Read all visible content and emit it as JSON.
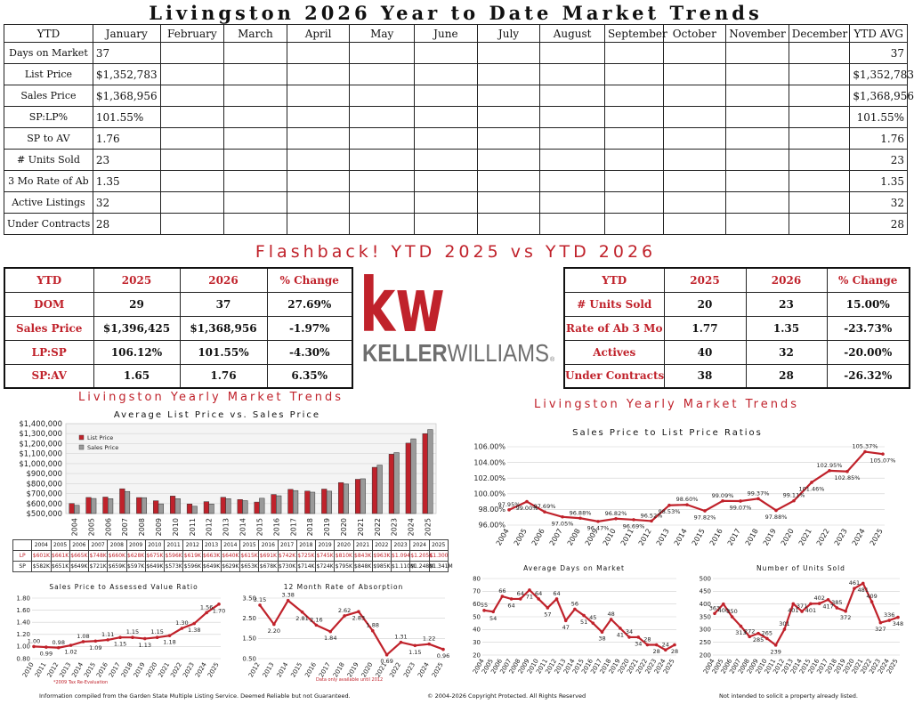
{
  "title": "Livingston 2026 Year to Date Market Trends",
  "main_table": {
    "headers": [
      "YTD",
      "January",
      "February",
      "March",
      "April",
      "May",
      "June",
      "July",
      "August",
      "September",
      "October",
      "November",
      "December",
      "YTD AVG"
    ],
    "rows": [
      {
        "label": "Days on Market",
        "jan": "37",
        "avg": "37"
      },
      {
        "label": "List Price",
        "jan": "$1,352,783",
        "avg": "$1,352,783"
      },
      {
        "label": "Sales Price",
        "jan": "$1,368,956",
        "avg": "$1,368,956"
      },
      {
        "label": "SP:LP%",
        "jan": "101.55%",
        "avg": "101.55%"
      },
      {
        "label": "SP to AV",
        "jan": "1.76",
        "avg": "1.76"
      },
      {
        "label": "# Units Sold",
        "jan": "23",
        "avg": "23"
      },
      {
        "label": "3 Mo Rate of Ab",
        "jan": "1.35",
        "avg": "1.35"
      },
      {
        "label": "Active Listings",
        "jan": "32",
        "avg": "32"
      },
      {
        "label": "Under Contracts",
        "jan": "28",
        "avg": "28"
      }
    ]
  },
  "flashback_title": "Flashback!  YTD 2025 vs YTD 2026",
  "compare_left": {
    "headers": [
      "YTD",
      "2025",
      "2026",
      "% Change"
    ],
    "rows": [
      [
        "DOM",
        "29",
        "37",
        "27.69%"
      ],
      [
        "Sales Price",
        "$1,396,425",
        "$1,368,956",
        "-1.97%"
      ],
      [
        "LP:SP",
        "106.12%",
        "101.55%",
        "-4.30%"
      ],
      [
        "SP:AV",
        "1.65",
        "1.76",
        "6.35%"
      ]
    ]
  },
  "compare_right": {
    "headers": [
      "YTD",
      "2025",
      "2026",
      "% Change"
    ],
    "rows": [
      [
        "# Units Sold",
        "20",
        "23",
        "15.00%"
      ],
      [
        "Rate of Ab 3 Mo",
        "1.77",
        "1.35",
        "-23.73%"
      ],
      [
        "Actives",
        "40",
        "32",
        "-20.00%"
      ],
      [
        "Under Contracts",
        "38",
        "28",
        "-26.32%"
      ]
    ]
  },
  "logo": {
    "mark": "kw",
    "name_bold": "KELLER",
    "name_light": "WILLIAMS",
    "reg": "®"
  },
  "section_title": "Livingston Yearly Market Trends",
  "colors": {
    "red": "#c0222b",
    "dark": "#222222",
    "gray": "#9a9a9a"
  },
  "price_table": {
    "years": [
      "2004",
      "2005",
      "2006",
      "2007",
      "2008",
      "2009",
      "2010",
      "2011",
      "2012",
      "2013",
      "2014",
      "2015",
      "2016",
      "2017",
      "2018",
      "2019",
      "2020",
      "2021",
      "2022",
      "2023",
      "2024",
      "2025"
    ],
    "lp_label": "LP",
    "lp": [
      "$601K",
      "$661K",
      "$665K",
      "$748K",
      "$660K",
      "$628K",
      "$675K",
      "$596K",
      "$619K",
      "$663K",
      "$640K",
      "$615K",
      "$691K",
      "$742K",
      "$725K",
      "$745K",
      "$810K",
      "$843K",
      "$963K",
      "$1.094",
      "$1.205K",
      "$1.300"
    ],
    "sp_label": "SP",
    "sp": [
      "$582K",
      "$651K",
      "$649K",
      "$721K",
      "$659K",
      "$597K",
      "$649K",
      "$573K",
      "$596K",
      "$649K",
      "$629K",
      "$653K",
      "$678K",
      "$730K",
      "$714K",
      "$724K",
      "$795K",
      "$848K",
      "$985K",
      "$1.110M",
      "$1.248M",
      "$1.341M"
    ]
  },
  "chart_data": [
    {
      "id": "avg-list-vs-sales",
      "type": "bar",
      "title": "Average List Price vs. Sales Price",
      "categories": [
        "2004",
        "2005",
        "2006",
        "2007",
        "2008",
        "2009",
        "2010",
        "2011",
        "2012",
        "2013",
        "2014",
        "2015",
        "2016",
        "2017",
        "2018",
        "2019",
        "2020",
        "2021",
        "2022",
        "2023",
        "2024",
        "2025"
      ],
      "series": [
        {
          "name": "List Price",
          "values": [
            601000,
            661000,
            665000,
            748000,
            660000,
            628000,
            675000,
            596000,
            619000,
            663000,
            640000,
            615000,
            691000,
            742000,
            725000,
            745000,
            810000,
            843000,
            963000,
            1094000,
            1205000,
            1300000
          ]
        },
        {
          "name": "Sales Price",
          "values": [
            582000,
            651000,
            649000,
            721000,
            659000,
            597000,
            649000,
            573000,
            596000,
            649000,
            629000,
            653000,
            678000,
            730000,
            714000,
            724000,
            795000,
            848000,
            985000,
            1110000,
            1248000,
            1341000
          ]
        }
      ],
      "ylim": [
        500000,
        1400000
      ],
      "yticks": [
        "$500,000",
        "$600,000",
        "$700,000",
        "$800,000",
        "$900,000",
        "$1,000,000",
        "$1,100,000",
        "$1,200,000",
        "$1,300,000",
        "$1,400,000"
      ],
      "legend": "top-left"
    },
    {
      "id": "sp-lp-ratio",
      "type": "line",
      "title": "Sales Price to List Price Ratios",
      "x": [
        "2004",
        "2005",
        "2006",
        "2007",
        "2008",
        "2009",
        "2010",
        "2011",
        "2012",
        "2013",
        "2014",
        "2015",
        "2016",
        "2017",
        "2018",
        "2019",
        "2020",
        "2021",
        "2022",
        "2023",
        "2024",
        "2025"
      ],
      "values": [
        97.95,
        99.0,
        97.69,
        97.05,
        96.88,
        96.47,
        96.82,
        96.69,
        96.52,
        98.53,
        98.6,
        97.82,
        99.09,
        99.07,
        99.37,
        97.88,
        99.11,
        101.46,
        102.95,
        102.85,
        105.37,
        105.07
      ],
      "labels": [
        "97.95%",
        "99.00%",
        "97.69%",
        "97.05%",
        "96.88%",
        "96.47%",
        "96.82%",
        "96.69%",
        "96.52%",
        "98.53%",
        "98.60%",
        "97.82%",
        "99.09%",
        "99.07%",
        "99.37%",
        "97.88%",
        "99.11%",
        "101.46%",
        "102.95%",
        "102.85%",
        "105.37%",
        "105.07%"
      ],
      "ylim": [
        96,
        106
      ],
      "yticks": [
        "96.00%",
        "98.00%",
        "100.00%",
        "102.00%",
        "104.00%",
        "106.00%"
      ]
    },
    {
      "id": "sp-to-av",
      "type": "line",
      "title": "Sales Price to Assessed Value Ratio",
      "x": [
        "2010",
        "2011",
        "2012",
        "2013",
        "2014",
        "2015",
        "2016",
        "2017",
        "2018",
        "2019",
        "2020",
        "2021",
        "2022",
        "2023",
        "2024",
        "2025"
      ],
      "values": [
        1.0,
        0.99,
        0.98,
        1.02,
        1.08,
        1.09,
        1.11,
        1.15,
        1.15,
        1.13,
        1.15,
        1.18,
        1.3,
        1.38,
        1.56,
        1.7
      ],
      "labels": [
        "1.00",
        "0.99",
        "0.98",
        "1.02",
        "1.08",
        "1.09",
        "1.11",
        "1.15",
        "1.15",
        "1.13",
        "1.15",
        "1.18",
        "1.30",
        "1.38",
        "1.56",
        "1.70"
      ],
      "ylim": [
        0.8,
        1.8
      ],
      "yticks": [
        "0.80",
        "1.00",
        "1.20",
        "1.40",
        "1.60",
        "1.80"
      ],
      "note": "*2009 Tax Re-Evaluation"
    },
    {
      "id": "rate-of-absorption",
      "type": "line",
      "title": "12 Month Rate of Absorption",
      "x": [
        "2012",
        "2013",
        "2014",
        "2015",
        "2016",
        "2017",
        "2018",
        "2019",
        "2020",
        "2021",
        "2022",
        "2023",
        "2024",
        "2025"
      ],
      "values": [
        3.15,
        2.2,
        3.38,
        2.81,
        2.16,
        1.84,
        2.62,
        2.83,
        1.88,
        0.69,
        1.31,
        1.15,
        1.22,
        0.96
      ],
      "labels": [
        "3.15",
        "2.20",
        "3.38",
        "2.81",
        "2.16",
        "1.84",
        "2.62",
        "2.83",
        "1.88",
        "0.69",
        "1.31",
        "1.15",
        "1.22",
        "0.96"
      ],
      "ylim": [
        0.5,
        3.5
      ],
      "yticks": [
        "0.50",
        "1.50",
        "2.50",
        "3.50"
      ],
      "note": "Data only available until 2012"
    },
    {
      "id": "avg-days-on-market",
      "type": "line",
      "title": "Average Days on Market",
      "x": [
        "2004",
        "2005",
        "2006",
        "2007",
        "2008",
        "2009",
        "2010",
        "2011",
        "2012",
        "2013",
        "2014",
        "2015",
        "2016",
        "2017",
        "2018",
        "2019",
        "2020",
        "2021",
        "2022",
        "2023",
        "2024",
        "2025"
      ],
      "values": [
        55,
        54,
        66,
        64,
        64,
        71,
        64,
        57,
        64,
        47,
        56,
        51,
        45,
        38,
        48,
        41,
        34,
        34,
        28,
        28,
        24,
        28
      ],
      "labels": [
        "55",
        "54",
        "66",
        "64",
        "64",
        "71",
        "64",
        "57",
        "64",
        "47",
        "56",
        "51",
        "45",
        "38",
        "48",
        "41",
        "34",
        "34",
        "28",
        "28",
        "24",
        "28"
      ],
      "ylim": [
        20,
        80
      ],
      "yticks": [
        "20",
        "30",
        "40",
        "50",
        "60",
        "70",
        "80"
      ]
    },
    {
      "id": "units-sold",
      "type": "line",
      "title": "Number of Units Sold",
      "x": [
        "2004",
        "2005",
        "2006",
        "2007",
        "2008",
        "2009",
        "2010",
        "2011",
        "2012",
        "2013",
        "2014",
        "2015",
        "2016",
        "2017",
        "2018",
        "2019",
        "2020",
        "2021",
        "2022",
        "2023",
        "2024",
        "2025"
      ],
      "values": [
        363,
        400,
        350,
        313,
        272,
        285,
        265,
        239,
        301,
        401,
        371,
        401,
        402,
        417,
        385,
        372,
        461,
        481,
        409,
        327,
        336,
        348
      ],
      "labels": [
        "363",
        "400",
        "350",
        "313",
        "272",
        "285",
        "265",
        "239",
        "301",
        "401",
        "371",
        "401",
        "402",
        "417",
        "385",
        "372",
        "461",
        "481",
        "409",
        "327",
        "336",
        "348"
      ],
      "ylim": [
        200,
        500
      ],
      "yticks": [
        "200",
        "250",
        "300",
        "350",
        "400",
        "450",
        "500"
      ]
    }
  ],
  "footer": {
    "left": "Information compiled from the Garden State Multiple Listing Service.  Deemed Reliable but not Guaranteed.",
    "center": "© 2004-2026 Copyright Protected.  All Rights Reserved",
    "right": "Not intended to solicit a property already listed."
  }
}
